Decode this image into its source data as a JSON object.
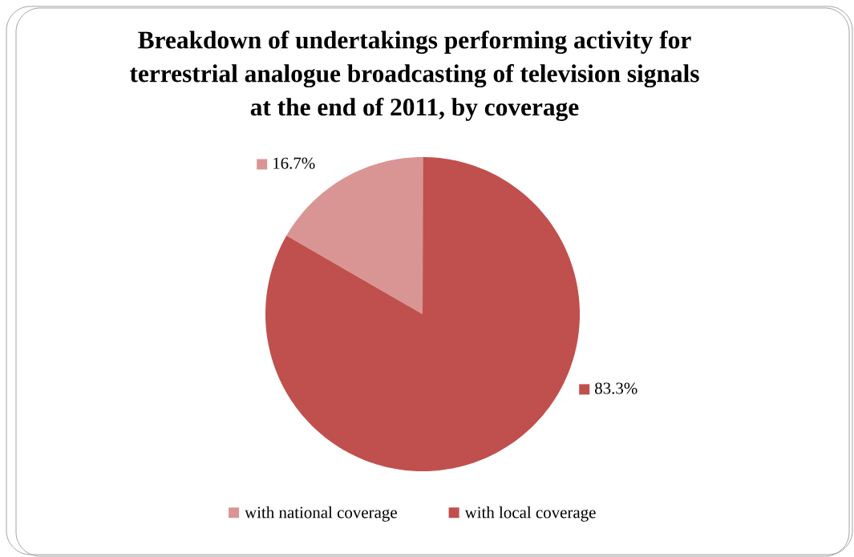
{
  "chart_data": {
    "type": "pie",
    "title": "Breakdown of undertakings performing activity for terrestrial analogue broadcasting of television signals at the end of 2011, by coverage",
    "categories": [
      "with national coverage",
      "with local coverage"
    ],
    "values": [
      16.7,
      83.3
    ],
    "colors": [
      "#d99594",
      "#c0504d"
    ],
    "value_labels": [
      "16.7%",
      "83.3%"
    ],
    "legend": "bottom"
  }
}
